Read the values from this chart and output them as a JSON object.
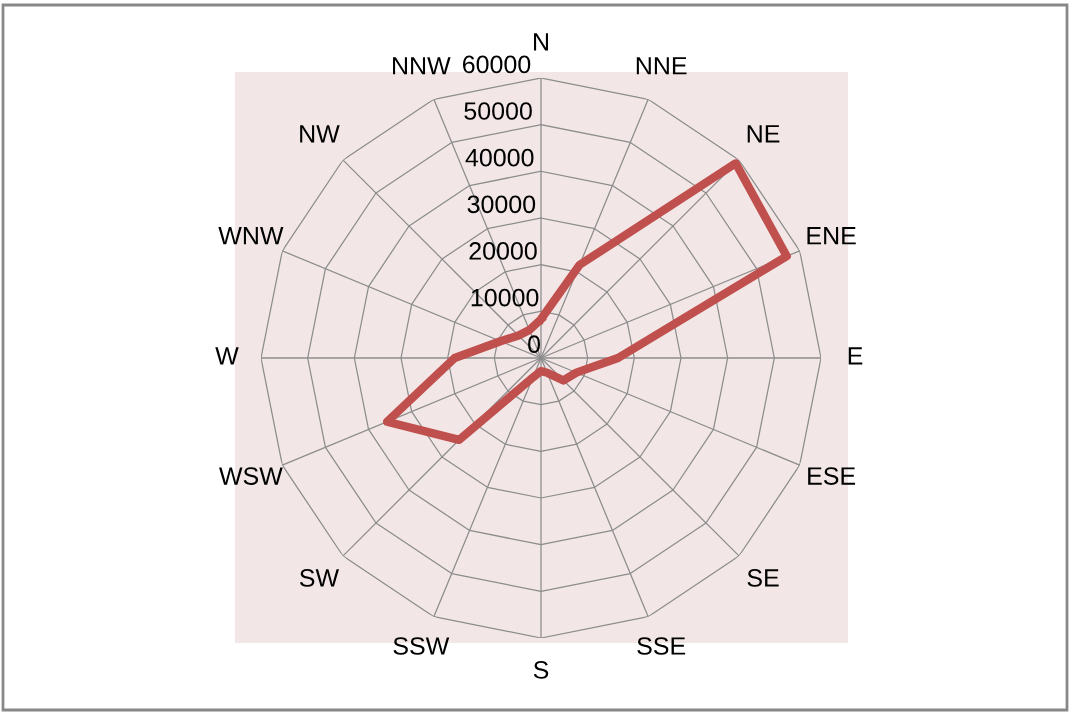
{
  "chart_data": {
    "type": "radar",
    "categories": [
      "N",
      "NNE",
      "NE",
      "ENE",
      "E",
      "ESE",
      "SE",
      "SSE",
      "S",
      "SSW",
      "SW",
      "WSW",
      "W",
      "WNW",
      "NW",
      "NNW"
    ],
    "series": [
      {
        "color": "#c0504d",
        "values": [
          8300,
          21600,
          59000,
          57000,
          16500,
          8200,
          6800,
          3400,
          2800,
          4500,
          24800,
          35700,
          18500,
          9400,
          6800,
          6500
        ]
      }
    ],
    "ylim": [
      0,
      60000
    ],
    "yticks": [
      0,
      10000,
      20000,
      30000,
      40000,
      50000,
      60000
    ],
    "grid": true
  }
}
